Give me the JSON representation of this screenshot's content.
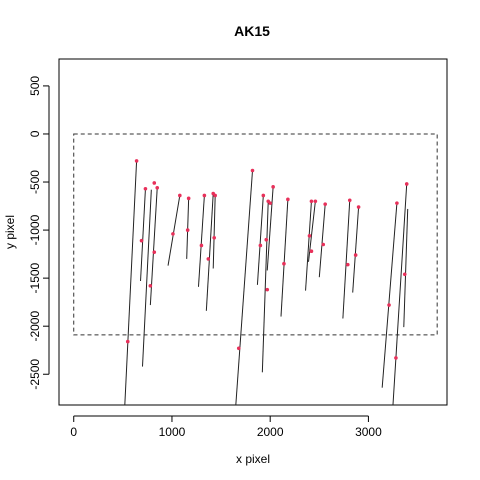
{
  "chart_data": {
    "type": "line",
    "title": "AK15",
    "xlabel": "x pixel",
    "ylabel": "y pixel",
    "xlim": [
      -150,
      3800
    ],
    "ylim": [
      -2820,
      780
    ],
    "x_ticks": [
      0,
      1000,
      2000,
      3000
    ],
    "x_tick_labels": [
      "0",
      "1000",
      "2000",
      "3000"
    ],
    "y_ticks": [
      500,
      0,
      -500,
      -1000,
      -1500,
      -2000,
      -2500
    ],
    "y_tick_labels": [
      "500",
      "0",
      "-500",
      "-1000",
      "-1500",
      "-2000",
      "-2500"
    ],
    "frame": {
      "x": [
        0,
        3700
      ],
      "y": [
        -2090,
        0
      ]
    },
    "segments": [
      {
        "x": [
          640,
          520
        ],
        "y": [
          -280,
          -2820
        ]
      },
      {
        "x": [
          730,
          680
        ],
        "y": [
          -570,
          -1530
        ]
      },
      {
        "x": [
          790,
          700
        ],
        "y": [
          -580,
          -2420
        ]
      },
      {
        "x": [
          850,
          780
        ],
        "y": [
          -560,
          -1780
        ]
      },
      {
        "x": [
          1080,
          960
        ],
        "y": [
          -640,
          -1370
        ]
      },
      {
        "x": [
          1170,
          1150
        ],
        "y": [
          -670,
          -1300
        ]
      },
      {
        "x": [
          1330,
          1270
        ],
        "y": [
          -640,
          -1590
        ]
      },
      {
        "x": [
          1420,
          1350
        ],
        "y": [
          -620,
          -1840
        ]
      },
      {
        "x": [
          1440,
          1420
        ],
        "y": [
          -640,
          -1400
        ]
      },
      {
        "x": [
          1820,
          1650
        ],
        "y": [
          -380,
          -2820
        ]
      },
      {
        "x": [
          1930,
          1870
        ],
        "y": [
          -640,
          -1570
        ]
      },
      {
        "x": [
          1980,
          1920
        ],
        "y": [
          -700,
          -2480
        ]
      },
      {
        "x": [
          2030,
          1970
        ],
        "y": [
          -550,
          -1420
        ]
      },
      {
        "x": [
          2180,
          2110
        ],
        "y": [
          -680,
          -1900
        ]
      },
      {
        "x": [
          2420,
          2360
        ],
        "y": [
          -700,
          -1630
        ]
      },
      {
        "x": [
          2460,
          2390
        ],
        "y": [
          -700,
          -1330
        ]
      },
      {
        "x": [
          2560,
          2500
        ],
        "y": [
          -730,
          -1490
        ]
      },
      {
        "x": [
          2810,
          2740
        ],
        "y": [
          -690,
          -1920
        ]
      },
      {
        "x": [
          2900,
          2840
        ],
        "y": [
          -760,
          -1650
        ]
      },
      {
        "x": [
          3290,
          3140
        ],
        "y": [
          -720,
          -2640
        ]
      },
      {
        "x": [
          3390,
          3250
        ],
        "y": [
          -520,
          -2820
        ]
      },
      {
        "x": [
          3400,
          3360
        ],
        "y": [
          -780,
          -2010
        ]
      }
    ],
    "points": [
      {
        "x": 640,
        "y": -280
      },
      {
        "x": 550,
        "y": -2160
      },
      {
        "x": 730,
        "y": -570
      },
      {
        "x": 690,
        "y": -1110
      },
      {
        "x": 780,
        "y": -1580
      },
      {
        "x": 820,
        "y": -510
      },
      {
        "x": 850,
        "y": -560
      },
      {
        "x": 820,
        "y": -1230
      },
      {
        "x": 1080,
        "y": -640
      },
      {
        "x": 1010,
        "y": -1040
      },
      {
        "x": 1170,
        "y": -670
      },
      {
        "x": 1160,
        "y": -1000
      },
      {
        "x": 1330,
        "y": -640
      },
      {
        "x": 1300,
        "y": -1160
      },
      {
        "x": 1370,
        "y": -1300
      },
      {
        "x": 1420,
        "y": -620
      },
      {
        "x": 1440,
        "y": -640
      },
      {
        "x": 1430,
        "y": -1080
      },
      {
        "x": 1820,
        "y": -380
      },
      {
        "x": 1680,
        "y": -2230
      },
      {
        "x": 1930,
        "y": -640
      },
      {
        "x": 1900,
        "y": -1160
      },
      {
        "x": 1960,
        "y": -1100
      },
      {
        "x": 1980,
        "y": -700
      },
      {
        "x": 2000,
        "y": -720
      },
      {
        "x": 2030,
        "y": -550
      },
      {
        "x": 1970,
        "y": -1620
      },
      {
        "x": 2180,
        "y": -680
      },
      {
        "x": 2140,
        "y": -1350
      },
      {
        "x": 2420,
        "y": -700
      },
      {
        "x": 2460,
        "y": -700
      },
      {
        "x": 2400,
        "y": -1060
      },
      {
        "x": 2420,
        "y": -1220
      },
      {
        "x": 2560,
        "y": -730
      },
      {
        "x": 2540,
        "y": -1150
      },
      {
        "x": 2810,
        "y": -690
      },
      {
        "x": 2790,
        "y": -1360
      },
      {
        "x": 2900,
        "y": -760
      },
      {
        "x": 2870,
        "y": -1260
      },
      {
        "x": 3290,
        "y": -720
      },
      {
        "x": 3210,
        "y": -1780
      },
      {
        "x": 3390,
        "y": -520
      },
      {
        "x": 3370,
        "y": -1460
      },
      {
        "x": 3280,
        "y": -2330
      }
    ],
    "grid": false,
    "legend": "none",
    "colors": {
      "points": "#e8305a",
      "segments": "#222222",
      "frame": "#333333"
    }
  }
}
